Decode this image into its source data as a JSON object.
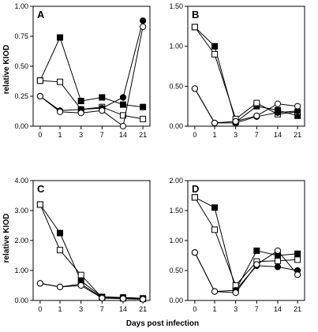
{
  "figure": {
    "ylabel": "relative KIOD",
    "xlabel": "Days post infection"
  },
  "chart_data": [
    {
      "type": "line",
      "panel": "A",
      "x": [
        "0",
        "1",
        "3",
        "7",
        "14",
        "21"
      ],
      "ylim": [
        0,
        1.0
      ],
      "yticks": [
        "0.00",
        "0.25",
        "0.50",
        "0.75",
        "1.00"
      ],
      "ytick_values": [
        0,
        0.25,
        0.5,
        0.75,
        1.0
      ],
      "series": [
        {
          "marker": "filled-square",
          "values": [
            0.38,
            0.74,
            0.21,
            0.24,
            0.18,
            0.16
          ]
        },
        {
          "marker": "open-square",
          "values": [
            0.38,
            0.37,
            0.14,
            0.16,
            0.09,
            0.06
          ]
        },
        {
          "marker": "filled-circle",
          "values": [
            0.25,
            0.13,
            0.14,
            0.15,
            0.24,
            0.88
          ]
        },
        {
          "marker": "open-circle",
          "values": [
            0.25,
            0.12,
            0.11,
            0.13,
            0.0,
            0.83
          ]
        }
      ]
    },
    {
      "type": "line",
      "panel": "B",
      "x": [
        "0",
        "1",
        "3",
        "7",
        "14",
        "21"
      ],
      "ylim": [
        0,
        1.5
      ],
      "yticks": [
        "0.00",
        "0.50",
        "1.00",
        "1.50"
      ],
      "ytick_values": [
        0,
        0.5,
        1.0,
        1.5
      ],
      "series": [
        {
          "marker": "filled-square",
          "values": [
            1.24,
            1.0,
            0.05,
            0.25,
            0.2,
            0.13
          ]
        },
        {
          "marker": "open-square",
          "values": [
            1.24,
            0.9,
            0.09,
            0.29,
            0.15,
            0.18
          ]
        },
        {
          "marker": "filled-circle",
          "values": [
            0.47,
            0.04,
            0.04,
            0.12,
            0.17,
            0.19
          ]
        },
        {
          "marker": "open-circle",
          "values": [
            0.47,
            0.04,
            0.06,
            0.13,
            0.28,
            0.25
          ]
        }
      ]
    },
    {
      "type": "line",
      "panel": "C",
      "x": [
        "0",
        "1",
        "3",
        "7",
        "14",
        "21"
      ],
      "ylim": [
        0,
        4.0
      ],
      "yticks": [
        "0.00",
        "1.00",
        "2.00",
        "3.00",
        "4.00"
      ],
      "ytick_values": [
        0,
        1.0,
        2.0,
        3.0,
        4.0
      ],
      "series": [
        {
          "marker": "filled-square",
          "values": [
            3.2,
            2.25,
            0.65,
            0.12,
            0.1,
            0.07
          ]
        },
        {
          "marker": "open-square",
          "values": [
            3.2,
            1.68,
            0.85,
            0.1,
            0.07,
            0.05
          ]
        },
        {
          "marker": "filled-circle",
          "values": [
            0.57,
            0.45,
            0.55,
            0.1,
            0.1,
            0.07
          ]
        },
        {
          "marker": "open-circle",
          "values": [
            0.57,
            0.45,
            0.5,
            0.08,
            0.06,
            0.04
          ]
        }
      ]
    },
    {
      "type": "line",
      "panel": "D",
      "x": [
        "0",
        "1",
        "3",
        "7",
        "14",
        "21"
      ],
      "ylim": [
        0,
        2.0
      ],
      "yticks": [
        "0.00",
        "0.50",
        "1.00",
        "1.50",
        "2.00"
      ],
      "ytick_values": [
        0,
        0.5,
        1.0,
        1.5,
        2.0
      ],
      "series": [
        {
          "marker": "filled-square",
          "values": [
            1.72,
            1.55,
            0.17,
            0.83,
            0.75,
            0.78
          ]
        },
        {
          "marker": "open-square",
          "values": [
            1.72,
            1.18,
            0.25,
            0.65,
            0.66,
            0.68
          ]
        },
        {
          "marker": "filled-circle",
          "values": [
            0.8,
            0.15,
            0.17,
            0.58,
            0.56,
            0.5
          ]
        },
        {
          "marker": "open-circle",
          "values": [
            0.8,
            0.15,
            0.13,
            0.6,
            0.83,
            0.43
          ]
        }
      ]
    }
  ]
}
